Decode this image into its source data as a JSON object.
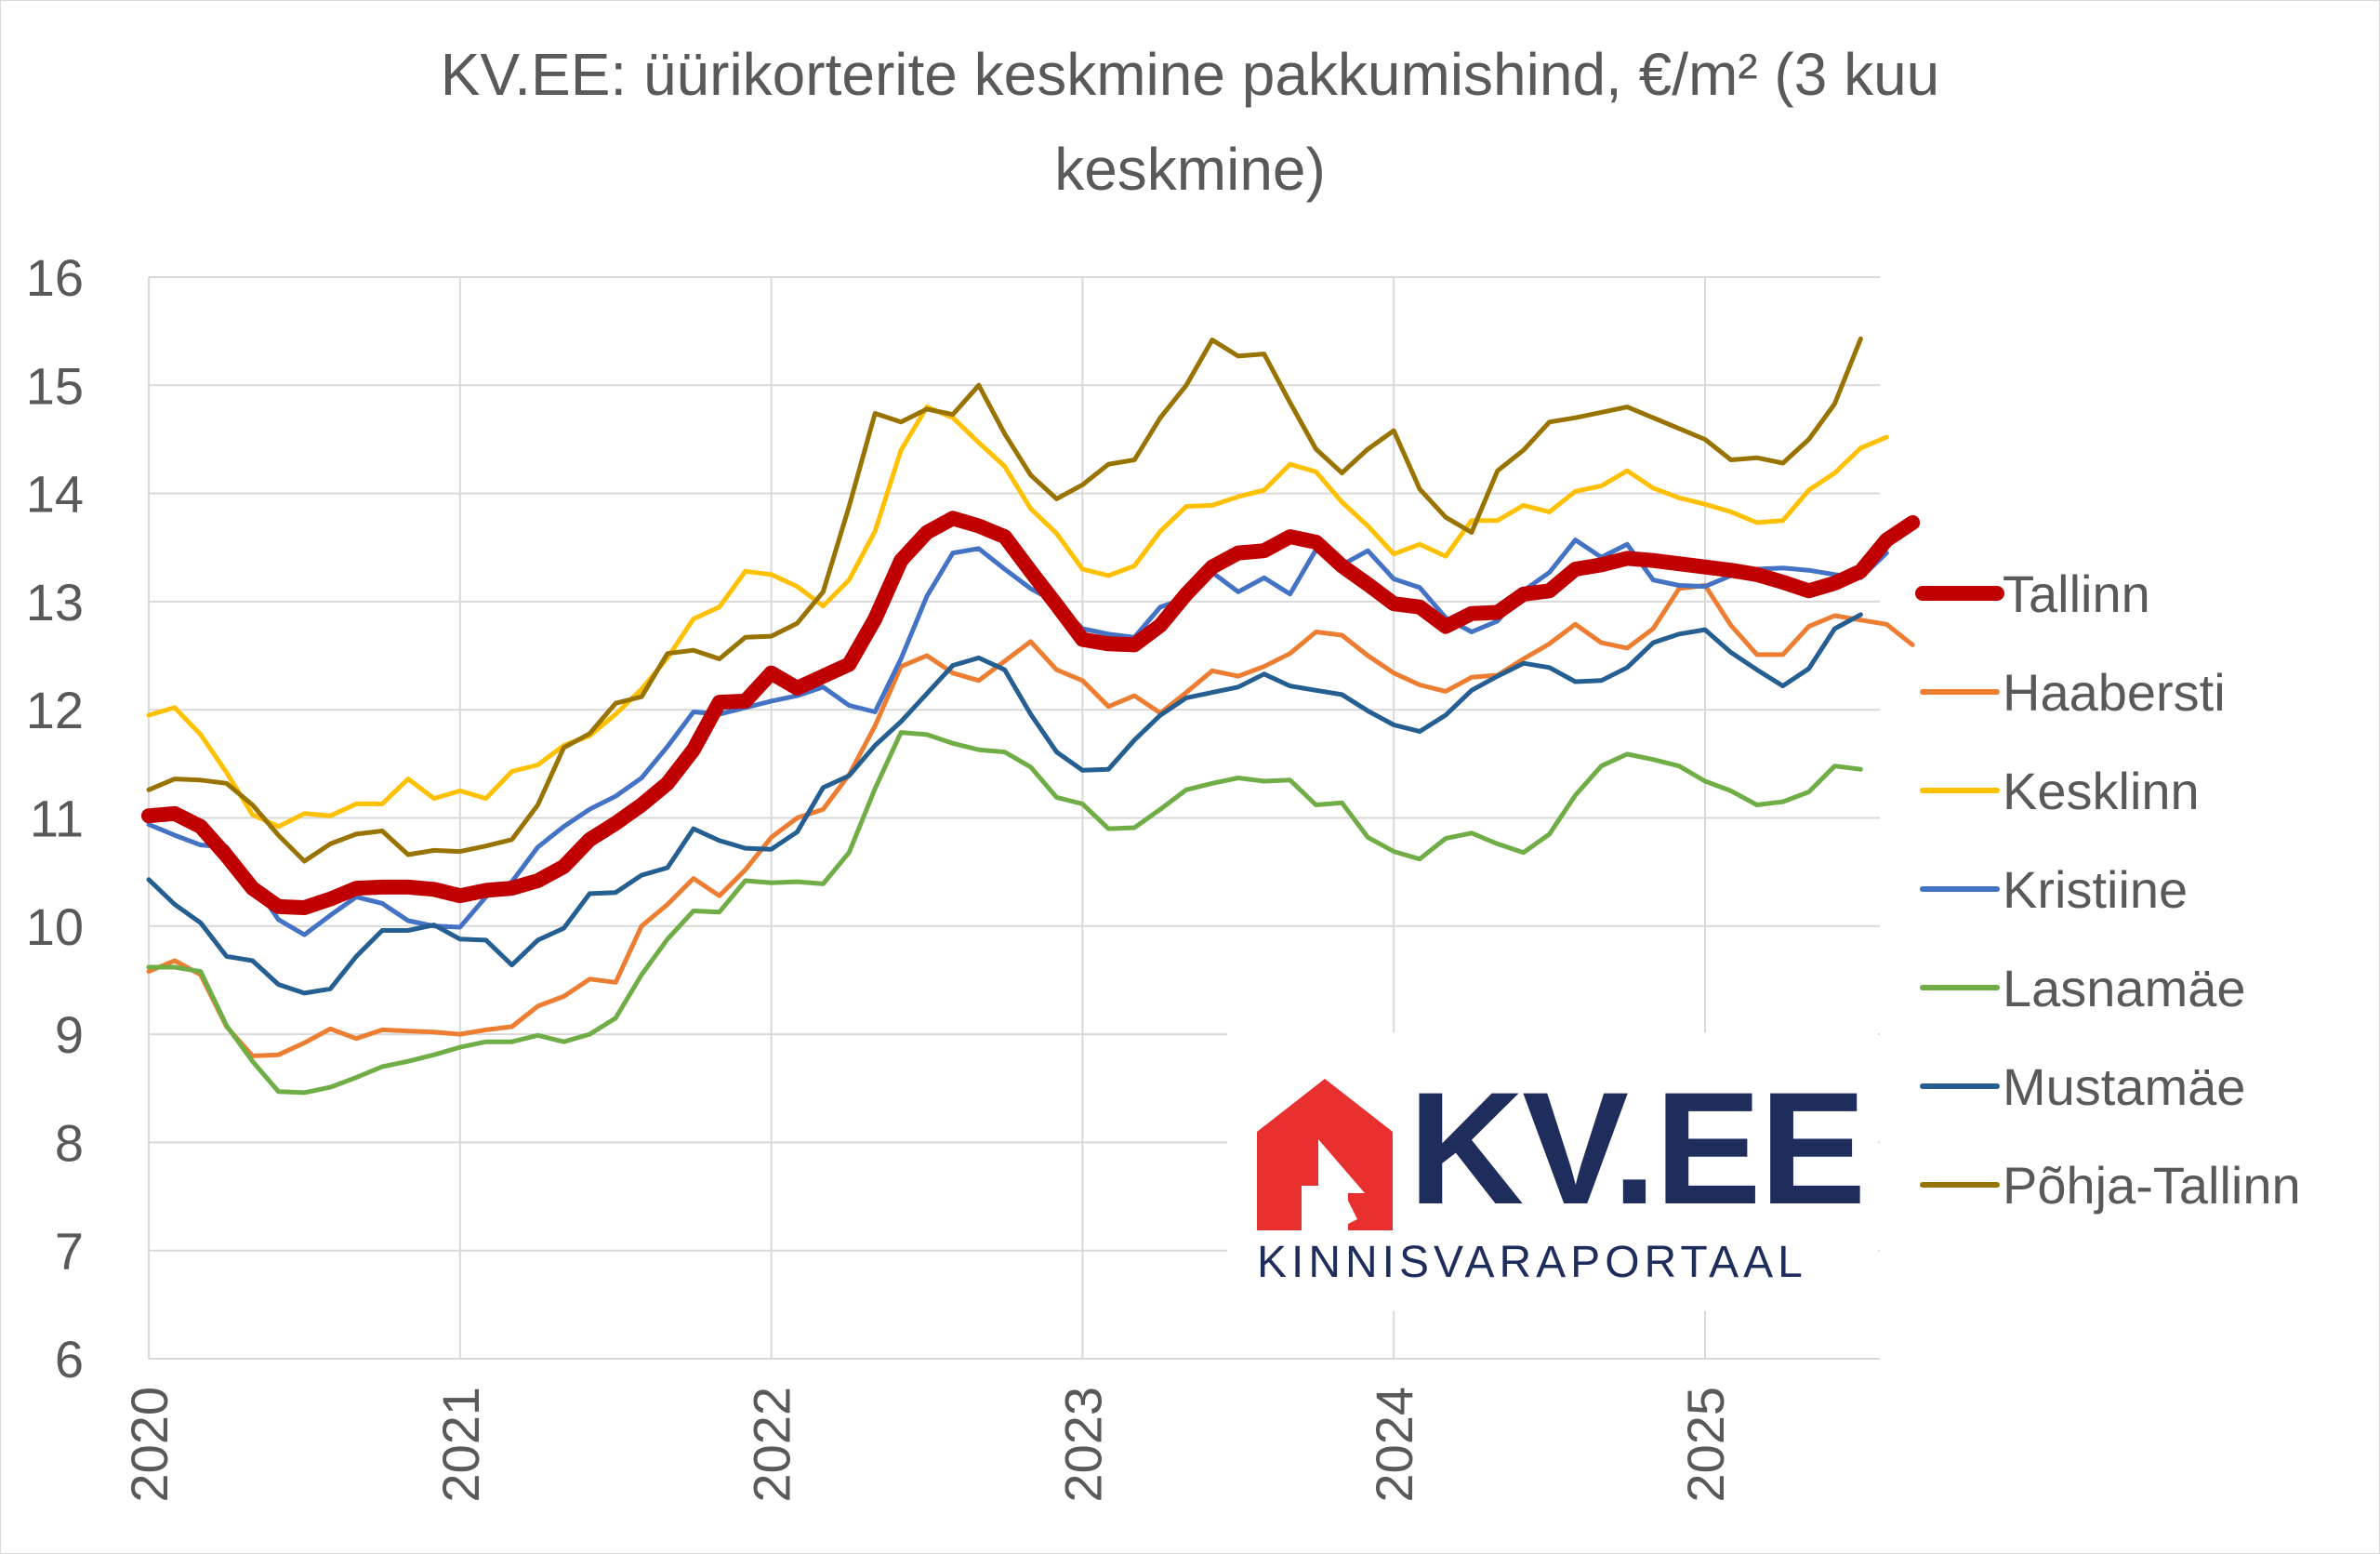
{
  "chart_data": {
    "type": "line",
    "title_line1": "KV.EE: üürikorterite keskmine pakkumishind, €/m² (3 kuu",
    "title_line2": "keskmine)",
    "xlabel": "",
    "ylabel": "",
    "ylim": [
      6,
      16
    ],
    "yticks": [
      "6",
      "7",
      "8",
      "9",
      "10",
      "11",
      "12",
      "13",
      "14",
      "15",
      "16"
    ],
    "xticks": [
      "2020",
      "2021",
      "2022",
      "2023",
      "2024",
      "2025"
    ],
    "grid": true,
    "legend_position": "right",
    "x_start": "2020-01",
    "x_end": "2025-07",
    "series": [
      {
        "name": "Tallinn",
        "color": "#c00000",
        "values": [
          11.02,
          11.04,
          10.92,
          10.65,
          10.35,
          10.18,
          10.17,
          10.25,
          10.35,
          10.36,
          10.36,
          10.34,
          10.28,
          10.33,
          10.35,
          10.42,
          10.55,
          10.8,
          10.95,
          11.12,
          11.32,
          11.63,
          12.07,
          12.08,
          12.34,
          12.2,
          12.31,
          12.42,
          12.84,
          13.38,
          13.64,
          13.77,
          13.7,
          13.6,
          13.28,
          12.97,
          12.65,
          12.61,
          12.6,
          12.78,
          13.07,
          13.32,
          13.45,
          13.47,
          13.6,
          13.55,
          13.33,
          13.16,
          12.98,
          12.95,
          12.77,
          12.89,
          12.9,
          13.07,
          13.1,
          13.3,
          13.34,
          13.4,
          13.38,
          13.35,
          13.32,
          13.29,
          13.25,
          13.18,
          13.1,
          13.17,
          13.28,
          13.57,
          13.73
        ]
      },
      {
        "name": "Haabersti",
        "color": "#ed7d31",
        "values": [
          9.58,
          9.68,
          9.55,
          9.07,
          8.8,
          8.81,
          8.92,
          9.05,
          8.96,
          9.04,
          9.03,
          9.02,
          9.0,
          9.04,
          9.07,
          9.26,
          9.35,
          9.51,
          9.48,
          10.0,
          10.2,
          10.44,
          10.28,
          10.52,
          10.82,
          11.0,
          11.08,
          11.4,
          11.85,
          12.4,
          12.5,
          12.34,
          12.27,
          12.45,
          12.63,
          12.37,
          12.27,
          12.03,
          12.13,
          11.97,
          12.16,
          12.36,
          12.31,
          12.4,
          12.52,
          12.72,
          12.69,
          12.5,
          12.34,
          12.23,
          12.17,
          12.3,
          12.32,
          12.47,
          12.61,
          12.79,
          12.62,
          12.57,
          12.75,
          13.12,
          13.15,
          12.78,
          12.51,
          12.51,
          12.77,
          12.87,
          12.83,
          12.79,
          12.6
        ]
      },
      {
        "name": "Kesklinn",
        "color": "#ffc000",
        "values": [
          11.95,
          12.02,
          11.77,
          11.42,
          11.03,
          10.92,
          11.04,
          11.02,
          11.13,
          11.13,
          11.36,
          11.18,
          11.25,
          11.18,
          11.43,
          11.49,
          11.67,
          11.76,
          11.96,
          12.19,
          12.48,
          12.84,
          12.95,
          13.28,
          13.25,
          13.14,
          12.96,
          13.2,
          13.65,
          14.4,
          14.8,
          14.7,
          14.47,
          14.25,
          13.86,
          13.63,
          13.3,
          13.24,
          13.33,
          13.65,
          13.88,
          13.89,
          13.97,
          14.03,
          14.27,
          14.2,
          13.92,
          13.7,
          13.44,
          13.53,
          13.42,
          13.75,
          13.75,
          13.89,
          13.83,
          14.02,
          14.07,
          14.21,
          14.05,
          13.96,
          13.9,
          13.83,
          13.73,
          13.75,
          14.03,
          14.19,
          14.42,
          14.52
        ]
      },
      {
        "name": "Kristiine",
        "color": "#4472c4",
        "values": [
          10.94,
          10.84,
          10.75,
          10.73,
          10.41,
          10.06,
          9.92,
          10.1,
          10.27,
          10.21,
          10.05,
          10.0,
          9.99,
          10.27,
          10.41,
          10.73,
          10.92,
          11.08,
          11.2,
          11.37,
          11.66,
          11.98,
          11.96,
          12.02,
          12.08,
          12.13,
          12.21,
          12.04,
          11.98,
          12.47,
          13.05,
          13.45,
          13.49,
          13.3,
          13.12,
          12.99,
          12.75,
          12.7,
          12.67,
          12.95,
          13.03,
          13.27,
          13.09,
          13.22,
          13.07,
          13.48,
          13.34,
          13.47,
          13.21,
          13.13,
          12.85,
          12.72,
          12.82,
          13.1,
          13.27,
          13.57,
          13.41,
          13.53,
          13.2,
          13.15,
          13.14,
          13.24,
          13.3,
          13.31,
          13.29,
          13.25,
          13.22,
          13.45
        ]
      },
      {
        "name": "Lasnamäe",
        "color": "#70ad47",
        "values": [
          9.62,
          9.62,
          9.58,
          9.08,
          8.75,
          8.47,
          8.46,
          8.51,
          8.6,
          8.7,
          8.75,
          8.81,
          8.88,
          8.93,
          8.93,
          8.99,
          8.93,
          9.0,
          9.15,
          9.55,
          9.88,
          10.14,
          10.13,
          10.42,
          10.4,
          10.41,
          10.39,
          10.68,
          11.27,
          11.79,
          11.77,
          11.69,
          11.63,
          11.61,
          11.47,
          11.19,
          11.13,
          10.9,
          10.91,
          11.08,
          11.26,
          11.32,
          11.37,
          11.34,
          11.35,
          11.12,
          11.14,
          10.82,
          10.69,
          10.62,
          10.81,
          10.86,
          10.76,
          10.68,
          10.85,
          11.21,
          11.48,
          11.59,
          11.54,
          11.48,
          11.34,
          11.25,
          11.12,
          11.15,
          11.24,
          11.48,
          11.45
        ]
      },
      {
        "name": "Mustamäe",
        "color": "#255e91",
        "values": [
          10.43,
          10.2,
          10.03,
          9.72,
          9.68,
          9.46,
          9.38,
          9.42,
          9.72,
          9.96,
          9.96,
          10.01,
          9.88,
          9.87,
          9.64,
          9.87,
          9.98,
          10.3,
          10.31,
          10.47,
          10.54,
          10.9,
          10.79,
          10.72,
          10.71,
          10.87,
          11.28,
          11.39,
          11.67,
          11.89,
          12.15,
          12.41,
          12.48,
          12.37,
          11.96,
          11.61,
          11.44,
          11.45,
          11.72,
          11.95,
          12.11,
          12.16,
          12.21,
          12.33,
          12.22,
          12.18,
          12.14,
          11.99,
          11.86,
          11.8,
          11.95,
          12.18,
          12.31,
          12.43,
          12.39,
          12.26,
          12.27,
          12.39,
          12.62,
          12.7,
          12.74,
          12.53,
          12.37,
          12.22,
          12.38,
          12.75,
          12.88
        ]
      },
      {
        "name": "Põhja-Tallinn",
        "color": "#997300",
        "values": [
          11.26,
          11.36,
          11.35,
          11.32,
          11.12,
          10.84,
          10.6,
          10.76,
          10.85,
          10.88,
          10.66,
          10.7,
          10.69,
          10.74,
          10.8,
          11.12,
          11.65,
          11.78,
          12.06,
          12.12,
          12.52,
          12.55,
          12.47,
          12.67,
          12.68,
          12.8,
          13.09,
          13.88,
          14.74,
          14.66,
          14.78,
          14.73,
          15.0,
          14.55,
          14.17,
          13.95,
          14.08,
          14.27,
          14.31,
          14.7,
          15.0,
          15.42,
          15.27,
          15.29,
          14.84,
          14.41,
          14.19,
          14.41,
          14.58,
          14.04,
          13.78,
          13.64,
          14.21,
          14.4,
          14.66,
          14.7,
          14.75,
          14.8,
          14.7,
          14.6,
          14.5,
          14.31,
          14.33,
          14.28,
          14.5,
          14.83,
          15.43
        ]
      }
    ]
  },
  "logo": {
    "brand": "KV.EE",
    "subtitle": "KINNISVARAPORTAAL",
    "red": "#e8302e",
    "navy": "#1f2d5c"
  }
}
